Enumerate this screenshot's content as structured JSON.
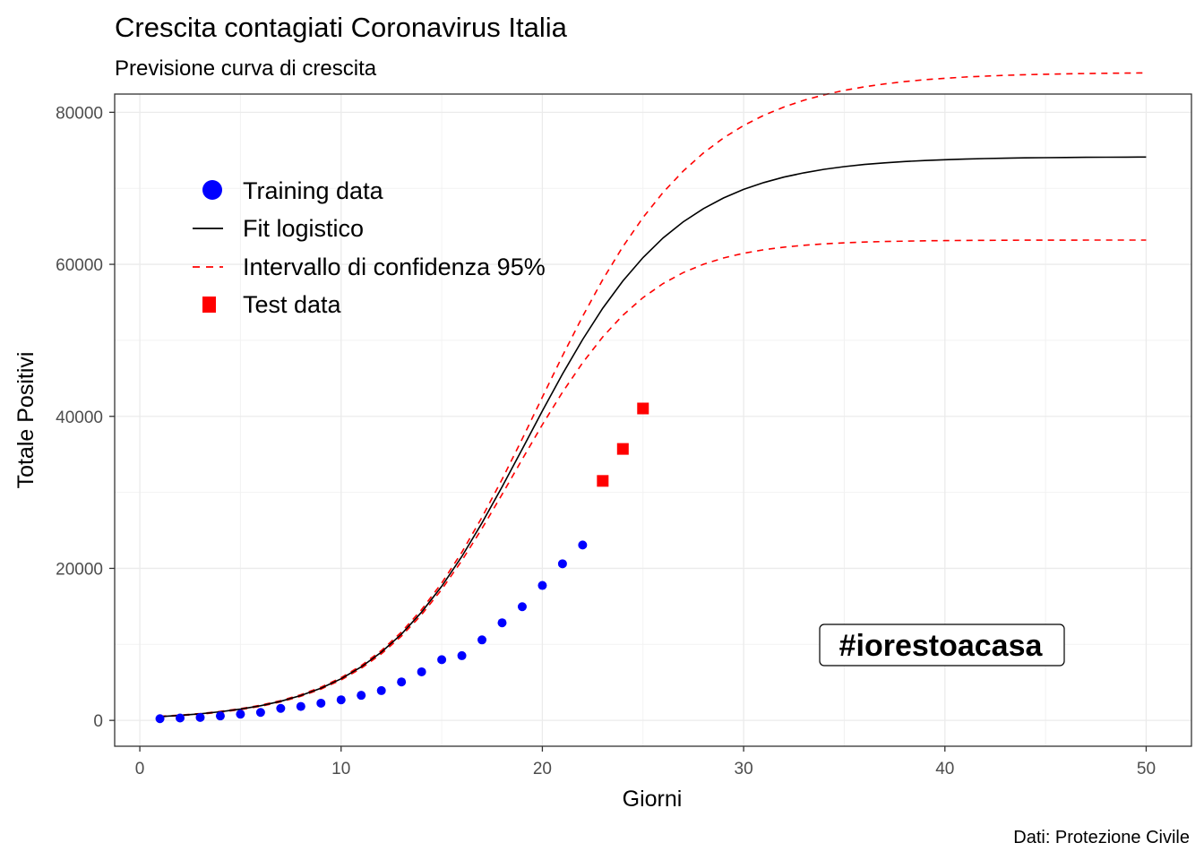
{
  "chart_data": {
    "type": "line",
    "title": "Crescita contagiati Coronavirus Italia",
    "subtitle": "Previsione curva di crescita",
    "xlabel": "Giorni",
    "ylabel": "Totale Positivi",
    "caption": "Dati: Protezione Civile",
    "annotation": "#iorestoacasa",
    "xlim": [
      -1.25,
      52.25
    ],
    "ylim": [
      -3400,
      82400
    ],
    "x_ticks": [
      0,
      10,
      20,
      30,
      40,
      50
    ],
    "y_ticks": [
      0,
      20000,
      40000,
      60000,
      80000
    ],
    "x_tick_labels": [
      "0",
      "10",
      "20",
      "30",
      "40",
      "50"
    ],
    "y_tick_labels": [
      "0",
      "20000",
      "40000",
      "60000",
      "80000"
    ],
    "grid": true,
    "legend_position": "top-left",
    "legend": [
      {
        "label": "Training data",
        "symbol": "point",
        "color": "#0000ff"
      },
      {
        "label": "Fit logistico",
        "symbol": "line",
        "color": "#000000"
      },
      {
        "label": "Intervallo di confidenza 95%",
        "symbol": "dashed-line",
        "color": "#ff0000"
      },
      {
        "label": "Test data",
        "symbol": "square",
        "color": "#ff0000"
      }
    ],
    "series": [
      {
        "name": "Training data",
        "kind": "points",
        "color": "#0000ff",
        "x": [
          1,
          2,
          3,
          4,
          5,
          6,
          7,
          8,
          9,
          10,
          11,
          12,
          13,
          14,
          15,
          16,
          17,
          18,
          19,
          20,
          21,
          22
        ],
        "y": [
          221,
          311,
          385,
          588,
          821,
          1049,
          1577,
          1835,
          2263,
          2706,
          3296,
          3916,
          5061,
          6387,
          7985,
          8514,
          10590,
          12839,
          14955,
          17750,
          20603,
          23073
        ]
      },
      {
        "name": "Fit logistico",
        "kind": "line",
        "color": "#000000",
        "x": [
          1,
          2,
          3,
          4,
          5,
          6,
          7,
          8,
          9,
          10,
          11,
          12,
          13,
          14,
          15,
          16,
          17,
          18,
          19,
          20,
          21,
          22,
          23,
          24,
          25,
          26,
          27,
          28,
          29,
          30,
          31,
          32,
          33,
          34,
          35,
          36,
          37,
          38,
          39,
          40,
          41,
          42,
          43,
          44,
          45,
          46,
          47,
          48,
          49,
          50
        ],
        "y": [
          503,
          659,
          865,
          1132,
          1480,
          1932,
          2518,
          3273,
          4241,
          5474,
          7031,
          8972,
          11359,
          14242,
          17651,
          21578,
          25973,
          30731,
          35704,
          40712,
          45570,
          50112,
          54215,
          57813,
          60889,
          63467,
          65594,
          67328,
          68731,
          69858,
          70759,
          71476,
          72045,
          72496,
          72851,
          73131,
          73351,
          73524,
          73660,
          73766,
          73849,
          73914,
          73965,
          74005,
          74036,
          74060,
          74079,
          74094,
          74105,
          74114
        ]
      },
      {
        "name": "Intervallo di confidenza 95% (superiore)",
        "kind": "dashed",
        "color": "#ff0000",
        "x": [
          1,
          2,
          3,
          4,
          5,
          6,
          7,
          8,
          9,
          10,
          11,
          12,
          13,
          14,
          15,
          16,
          17,
          18,
          19,
          20,
          21,
          22,
          23,
          24,
          25,
          26,
          27,
          28,
          29,
          30,
          31,
          32,
          33,
          34,
          35,
          36,
          37,
          38,
          39,
          40,
          41,
          42,
          43,
          44,
          45,
          46,
          47,
          48,
          49,
          50
        ],
        "y": [
          531,
          692,
          905,
          1180,
          1537,
          2002,
          2604,
          3375,
          4364,
          5622,
          7210,
          9190,
          11626,
          14575,
          18071,
          22128,
          26707,
          31724,
          37053,
          42530,
          47962,
          53164,
          57984,
          62329,
          66154,
          69459,
          72275,
          74646,
          76624,
          78260,
          79601,
          80695,
          81585,
          82305,
          82887,
          83356,
          83734,
          84038,
          84282,
          84478,
          84635,
          84761,
          84862,
          84943,
          85008,
          85060,
          85102,
          85135,
          85162,
          85183
        ]
      },
      {
        "name": "Intervallo di confidenza 95% (inferiore)",
        "kind": "dashed",
        "color": "#ff0000",
        "x": [
          1,
          2,
          3,
          4,
          5,
          6,
          7,
          8,
          9,
          10,
          11,
          12,
          13,
          14,
          15,
          16,
          17,
          18,
          19,
          20,
          21,
          22,
          23,
          24,
          25,
          26,
          27,
          28,
          29,
          30,
          31,
          32,
          33,
          34,
          35,
          36,
          37,
          38,
          39,
          40,
          41,
          42,
          43,
          44,
          45,
          46,
          47,
          48,
          49,
          50
        ],
        "y": [
          475,
          626,
          825,
          1084,
          1423,
          1862,
          2432,
          3171,
          4118,
          5326,
          6852,
          8754,
          11092,
          13909,
          17231,
          21028,
          25239,
          29738,
          34356,
          38894,
          43178,
          47060,
          50446,
          53296,
          55624,
          57475,
          58912,
          60010,
          60838,
          61456,
          61917,
          62257,
          62508,
          62692,
          62827,
          62926,
          62998,
          63051,
          63090,
          63118,
          63139,
          63154,
          63165,
          63173,
          63179,
          63183,
          63186,
          63189,
          63190,
          63192
        ]
      },
      {
        "name": "Test data",
        "kind": "squares",
        "color": "#ff0000",
        "x": [
          23,
          24,
          25
        ],
        "y": [
          31506,
          35713,
          41035
        ]
      }
    ]
  }
}
